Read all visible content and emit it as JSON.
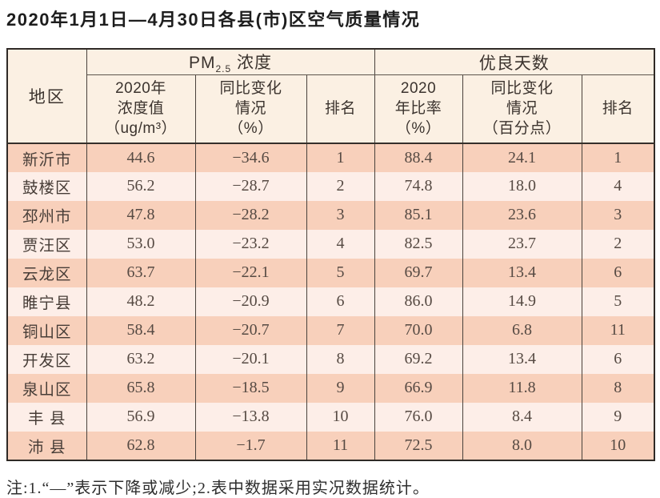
{
  "title": "2020年1月1日—4月30日各县(市)区空气质量情况",
  "table": {
    "region_header": "地区",
    "groups": {
      "pm25_prefix": "PM",
      "pm25_sub": "2.5",
      "pm25_suffix": " 浓度",
      "good_days": "优良天数"
    },
    "subheaders": {
      "pm_value": [
        "2020年",
        "浓度值",
        "（ug/m³）"
      ],
      "pm_change": [
        "同比变化",
        "情况",
        "（%）"
      ],
      "pm_rank": "排名",
      "good_rate": [
        "2020",
        "年比率",
        "（%）"
      ],
      "good_change": [
        "同比变化",
        "情况",
        "（百分点）"
      ],
      "good_rank": "排名"
    },
    "rows": [
      {
        "region": "新沂市",
        "pm_value": "44.6",
        "pm_change": "−34.6",
        "pm_rank": "1",
        "good_rate": "88.4",
        "good_change": "24.1",
        "good_rank": "1"
      },
      {
        "region": "鼓楼区",
        "pm_value": "56.2",
        "pm_change": "−28.7",
        "pm_rank": "2",
        "good_rate": "74.8",
        "good_change": "18.0",
        "good_rank": "4"
      },
      {
        "region": "邳州市",
        "pm_value": "47.8",
        "pm_change": "−28.2",
        "pm_rank": "3",
        "good_rate": "85.1",
        "good_change": "23.6",
        "good_rank": "3"
      },
      {
        "region": "贾汪区",
        "pm_value": "53.0",
        "pm_change": "−23.2",
        "pm_rank": "4",
        "good_rate": "82.5",
        "good_change": "23.7",
        "good_rank": "2"
      },
      {
        "region": "云龙区",
        "pm_value": "63.7",
        "pm_change": "−22.1",
        "pm_rank": "5",
        "good_rate": "69.7",
        "good_change": "13.4",
        "good_rank": "6"
      },
      {
        "region": "睢宁县",
        "pm_value": "48.2",
        "pm_change": "−20.9",
        "pm_rank": "6",
        "good_rate": "86.0",
        "good_change": "14.9",
        "good_rank": "5"
      },
      {
        "region": "铜山区",
        "pm_value": "58.4",
        "pm_change": "−20.7",
        "pm_rank": "7",
        "good_rate": "70.0",
        "good_change": "6.8",
        "good_rank": "11"
      },
      {
        "region": "开发区",
        "pm_value": "63.2",
        "pm_change": "−20.1",
        "pm_rank": "8",
        "good_rate": "69.2",
        "good_change": "13.4",
        "good_rank": "6"
      },
      {
        "region": "泉山区",
        "pm_value": "65.8",
        "pm_change": "−18.5",
        "pm_rank": "9",
        "good_rate": "66.9",
        "good_change": "11.8",
        "good_rank": "8"
      },
      {
        "region": "丰 县",
        "pm_value": "56.9",
        "pm_change": "−13.8",
        "pm_rank": "10",
        "good_rate": "76.0",
        "good_change": "8.4",
        "good_rank": "9"
      },
      {
        "region": "沛 县",
        "pm_value": "62.8",
        "pm_change": "−1.7",
        "pm_rank": "11",
        "good_rate": "72.5",
        "good_change": "8.0",
        "good_rank": "10"
      }
    ]
  },
  "note": "注:1.“—”表示下降或减少;2.表中数据采用实况数据统计。",
  "colors": {
    "row_odd_bg": "#f8d0bb",
    "row_even_bg": "#fdeee8",
    "header_bg": "#fbf0e3",
    "outer_border": "#2f2a26",
    "inner_border": "#4a423c"
  }
}
